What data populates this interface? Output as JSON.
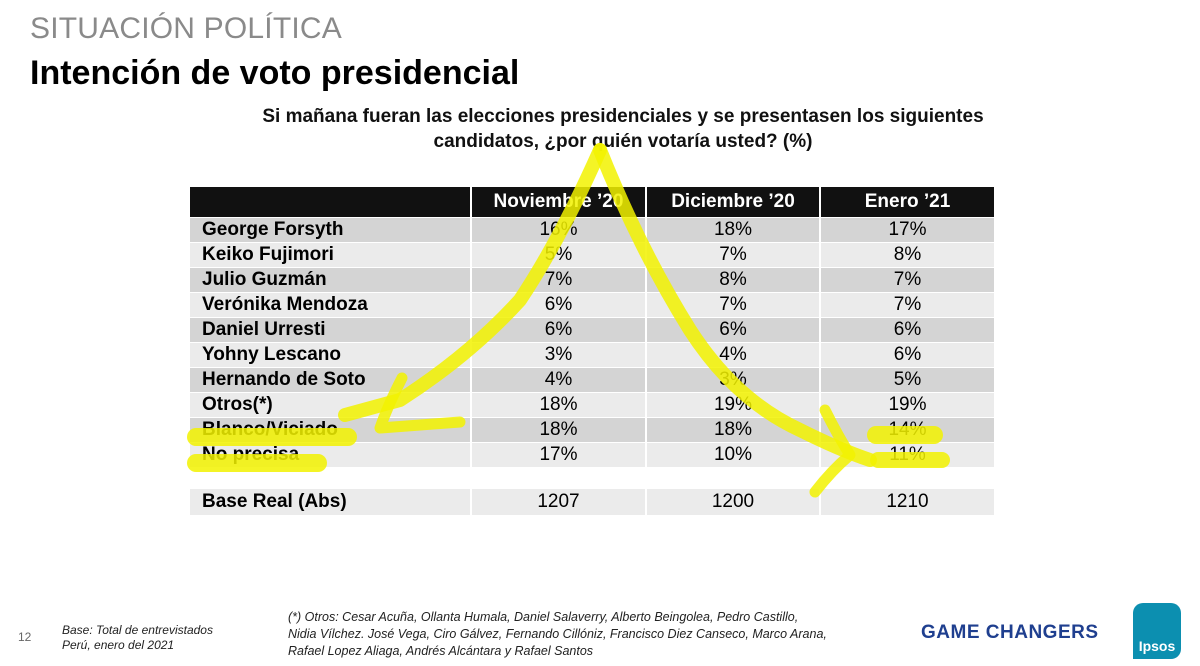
{
  "header": {
    "section": "SITUACIÓN POLÍTICA",
    "title": "Intención de voto presidencial",
    "question_line1": "Si mañana fueran las elecciones presidenciales y se presentasen los siguientes",
    "question_line2": "candidatos, ¿por quién votaría usted? (%)"
  },
  "table": {
    "columns": [
      "",
      "Noviembre ’20",
      "Diciembre ’20",
      "Enero ’21"
    ],
    "rows": [
      {
        "label": "George Forsyth",
        "values": [
          "16%",
          "18%",
          "17%"
        ]
      },
      {
        "label": "Keiko Fujimori",
        "values": [
          "5%",
          "7%",
          "8%"
        ]
      },
      {
        "label": "Julio Guzmán",
        "values": [
          "7%",
          "8%",
          "7%"
        ]
      },
      {
        "label": "Verónika Mendoza",
        "values": [
          "6%",
          "7%",
          "7%"
        ]
      },
      {
        "label": "Daniel Urresti",
        "values": [
          "6%",
          "6%",
          "6%"
        ]
      },
      {
        "label": "Yohny Lescano",
        "values": [
          "3%",
          "4%",
          "6%"
        ]
      },
      {
        "label": "Hernando de Soto",
        "values": [
          "4%",
          "3%",
          "5%"
        ]
      },
      {
        "label": "Otros(*)",
        "values": [
          "18%",
          "19%",
          "19%"
        ]
      },
      {
        "label": "Blanco/Viciado",
        "values": [
          "18%",
          "18%",
          "14%"
        ]
      },
      {
        "label": "No precisa",
        "values": [
          "17%",
          "10%",
          "11%"
        ]
      }
    ],
    "base": {
      "label": "Base Real (Abs)",
      "values": [
        "1207",
        "1200",
        "1210"
      ]
    }
  },
  "footer": {
    "page_number": "12",
    "base_line1": "Base: Total de entrevistados",
    "base_line2": "Perú, enero del 2021",
    "note": "(*) Otros:  Cesar Acuña, Ollanta Humala, Daniel Salaverry, Alberto Beingolea, Pedro Castillo, Nidia Vílchez. José Vega, Ciro Gálvez, Fernando Cillóniz, Francisco Diez Canseco, Marco Arana, Rafael Lopez Aliaga, Andrés Alcántara y Rafael Santos",
    "brand": "GAME CHANGERS",
    "logo_text": "Ipsos"
  },
  "colors": {
    "highlighter": "#f2f200",
    "header_bg": "#111111",
    "brand": "#1f3f8f",
    "logo": "#0c8fb0"
  }
}
